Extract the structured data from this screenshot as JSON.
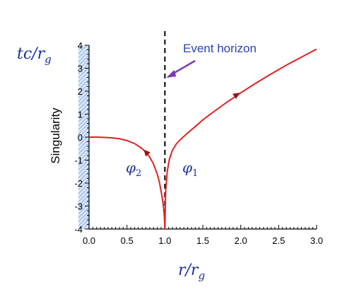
{
  "chart_data": {
    "type": "line",
    "xlabel": "r/r",
    "xlabel_sub": "g",
    "ylabel": "tc/r",
    "ylabel_sub": "g",
    "xlim": [
      0,
      3.0
    ],
    "ylim": [
      -4,
      4
    ],
    "x_ticks": [
      "0.0",
      "0.5",
      "1.0",
      "1.5",
      "2.0",
      "2.5",
      "3.0"
    ],
    "y_ticks": [
      "-4",
      "-3",
      "-2",
      "-1",
      "0",
      "1",
      "2",
      "3",
      "4"
    ],
    "grid": false,
    "shaded_region_label": "Singularity",
    "shaded_region_x": [
      -0.14,
      0
    ],
    "horizon_x": 1.0,
    "annotation": "Event horizon",
    "series": [
      {
        "name": "φ",
        "name_sub": "1",
        "color": "#e02020",
        "x": [
          1.0,
          1.002,
          1.01,
          1.03,
          1.06,
          1.1,
          1.15,
          1.2,
          1.3,
          1.4,
          1.5,
          1.6,
          1.8,
          2.0,
          2.2,
          2.4,
          2.6,
          2.8,
          3.0
        ],
        "y": [
          -4.0,
          -3.62,
          -2.36,
          -1.51,
          -0.95,
          -0.57,
          -0.3,
          -0.12,
          0.18,
          0.46,
          0.75,
          1.0,
          1.48,
          1.93,
          2.35,
          2.75,
          3.13,
          3.48,
          3.83
        ]
      },
      {
        "name": "φ",
        "name_sub": "2",
        "color": "#e02020",
        "x": [
          0.0,
          0.1,
          0.2,
          0.3,
          0.4,
          0.5,
          0.6,
          0.7,
          0.75,
          0.8,
          0.85,
          0.9,
          0.93,
          0.96,
          0.98,
          0.99,
          0.995,
          1.0
        ],
        "y": [
          0.0,
          0.0,
          -0.01,
          -0.03,
          -0.07,
          -0.15,
          -0.28,
          -0.5,
          -0.66,
          -0.87,
          -1.17,
          -1.62,
          -2.0,
          -2.54,
          -3.0,
          -3.35,
          -3.6,
          -4.0
        ]
      }
    ],
    "arrows": [
      {
        "series": 0,
        "x": 1.95,
        "y": 1.85
      },
      {
        "series": 1,
        "x": 0.75,
        "y": -0.65
      }
    ],
    "colors": {
      "curve": "#e02020",
      "horizon_line": "#000000",
      "annotation_text": "#2b3fb8",
      "annotation_arrow": "#7a3ab8",
      "axis_title": "#1a2f9e",
      "shading": "#5b8bd6"
    }
  }
}
